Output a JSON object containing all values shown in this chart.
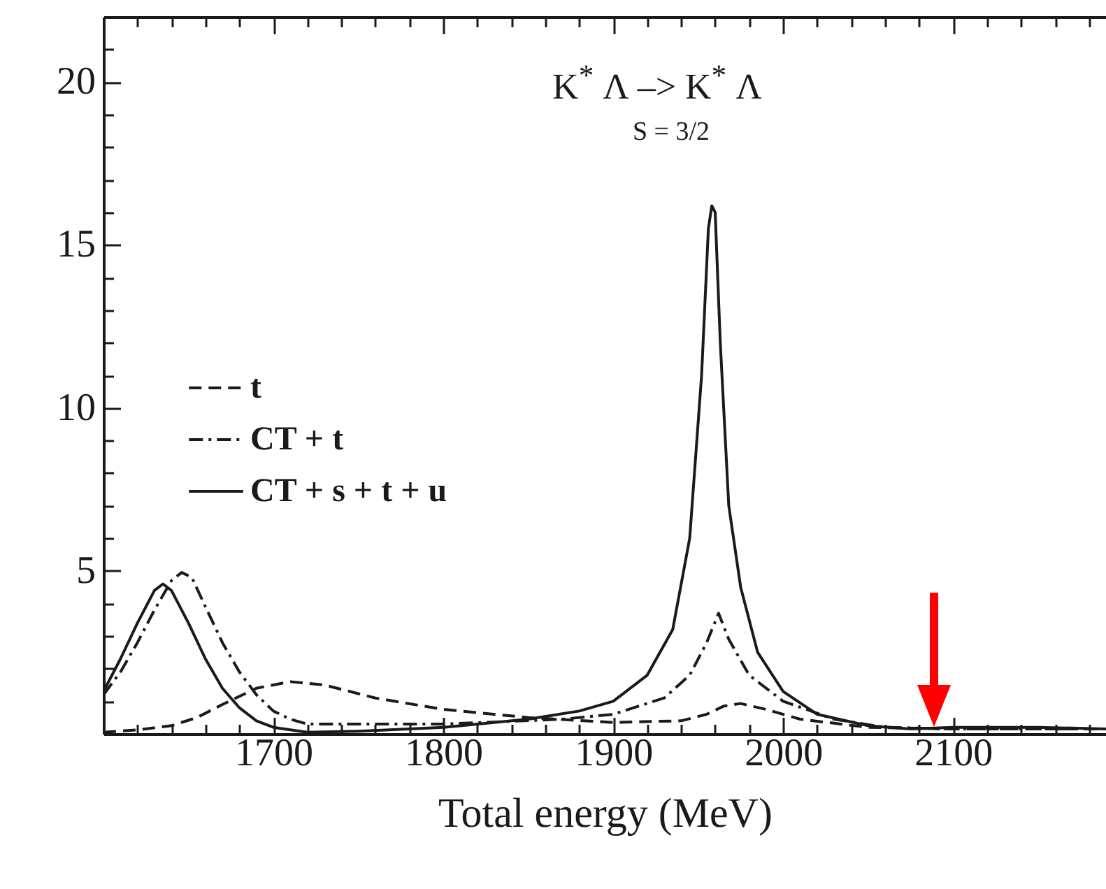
{
  "chart_data": {
    "type": "line",
    "title": "K$^{*}$ Λ –> K$^{*}$ Λ",
    "subtitle": "S = 3/2",
    "xlabel": "Total energy (MeV)",
    "xlim": [
      1600,
      2190
    ],
    "ylim": [
      0,
      22
    ],
    "xticks": [
      {
        "value": 1620,
        "label": null
      },
      {
        "value": 1640,
        "label": null
      },
      {
        "value": 1660,
        "label": null
      },
      {
        "value": 1680,
        "label": null
      },
      1700,
      {
        "value": 1720,
        "label": null
      },
      {
        "value": 1740,
        "label": null
      },
      {
        "value": 1760,
        "label": null
      },
      {
        "value": 1780,
        "label": null
      },
      1800,
      {
        "value": 1820,
        "label": null
      },
      {
        "value": 1840,
        "label": null
      },
      {
        "value": 1860,
        "label": null
      },
      {
        "value": 1880,
        "label": null
      },
      1900,
      {
        "value": 1920,
        "label": null
      },
      {
        "value": 1940,
        "label": null
      },
      {
        "value": 1960,
        "label": null
      },
      {
        "value": 1980,
        "label": null
      },
      2000,
      {
        "value": 2020,
        "label": null
      },
      {
        "value": 2040,
        "label": null
      },
      {
        "value": 2060,
        "label": null
      },
      {
        "value": 2080,
        "label": null
      },
      2100,
      {
        "value": 2120,
        "label": null
      },
      {
        "value": 2140,
        "label": null
      },
      {
        "value": 2160,
        "label": null
      },
      {
        "value": 2180,
        "label": null
      }
    ],
    "yticks": [
      {
        "value": 1,
        "label": null
      },
      {
        "value": 2,
        "label": null
      },
      {
        "value": 3,
        "label": null
      },
      {
        "value": 4,
        "label": null
      },
      5,
      {
        "value": 6,
        "label": null
      },
      {
        "value": 7,
        "label": null
      },
      {
        "value": 8,
        "label": null
      },
      {
        "value": 9,
        "label": null
      },
      10,
      {
        "value": 11,
        "label": null
      },
      {
        "value": 12,
        "label": null
      },
      {
        "value": 13,
        "label": null
      },
      {
        "value": 14,
        "label": null
      },
      15,
      {
        "value": 16,
        "label": null
      },
      {
        "value": 17,
        "label": null
      },
      {
        "value": 18,
        "label": null
      },
      {
        "value": 19,
        "label": null
      },
      20,
      {
        "value": 21,
        "label": null
      }
    ],
    "legend": "left",
    "series": [
      {
        "name": "t",
        "color": "#1a1a1a",
        "line_style": "dashed",
        "x": [
          1600,
          1620,
          1640,
          1655,
          1670,
          1690,
          1710,
          1730,
          1760,
          1800,
          1850,
          1900,
          1940,
          1955,
          1965,
          1975,
          1990,
          2010,
          2050,
          2100,
          2190
        ],
        "values": [
          0.05,
          0.12,
          0.25,
          0.5,
          0.9,
          1.4,
          1.6,
          1.5,
          1.1,
          0.75,
          0.5,
          0.35,
          0.4,
          0.6,
          0.85,
          0.93,
          0.75,
          0.45,
          0.2,
          0.15,
          0.15
        ]
      },
      {
        "name": "CT + t",
        "color": "#1a1a1a",
        "line_style": "dashdot",
        "x": [
          1600,
          1610,
          1620,
          1630,
          1640,
          1646,
          1652,
          1660,
          1670,
          1680,
          1690,
          1700,
          1710,
          1720,
          1800,
          1870,
          1900,
          1930,
          1945,
          1955,
          1962,
          1968,
          1980,
          2000,
          2030,
          2060,
          2100,
          2190
        ],
        "values": [
          1.2,
          1.9,
          2.8,
          3.8,
          4.7,
          4.95,
          4.8,
          3.9,
          2.8,
          1.9,
          1.2,
          0.7,
          0.45,
          0.3,
          0.3,
          0.45,
          0.6,
          1.1,
          1.8,
          2.8,
          3.7,
          2.9,
          1.8,
          1.0,
          0.45,
          0.2,
          0.15,
          0.15
        ]
      },
      {
        "name": "CT + s + t + u",
        "color": "#1a1a1a",
        "line_style": "solid",
        "x": [
          1600,
          1610,
          1620,
          1630,
          1635,
          1640,
          1650,
          1660,
          1670,
          1680,
          1690,
          1700,
          1720,
          1750,
          1800,
          1850,
          1880,
          1900,
          1920,
          1935,
          1945,
          1952,
          1956,
          1958,
          1960,
          1963,
          1968,
          1975,
          1985,
          2000,
          2020,
          2050,
          2075,
          2100,
          2150,
          2190
        ],
        "values": [
          1.3,
          2.3,
          3.4,
          4.4,
          4.6,
          4.4,
          3.4,
          2.3,
          1.4,
          0.8,
          0.4,
          0.2,
          0.05,
          0.08,
          0.2,
          0.45,
          0.7,
          1.0,
          1.8,
          3.2,
          6,
          11,
          15.5,
          16.2,
          16,
          12,
          7,
          4.5,
          2.5,
          1.3,
          0.6,
          0.25,
          0.15,
          0.2,
          0.2,
          0.15
        ]
      }
    ]
  }
}
